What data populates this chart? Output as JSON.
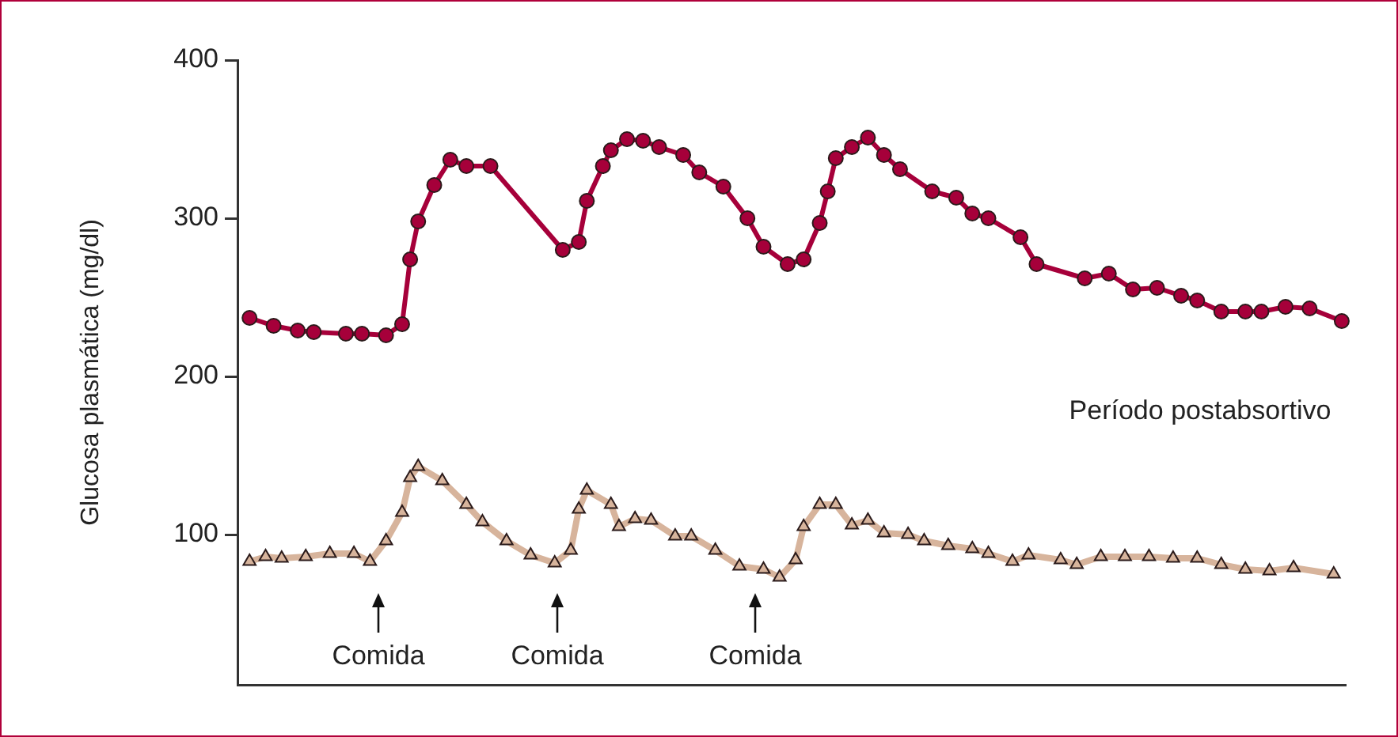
{
  "chart_data": {
    "type": "line",
    "ylabel": "Glucosa plasmática (mg/dl)",
    "categories": [
      null,
      null,
      null,
      null,
      null,
      null,
      null,
      null,
      null,
      null,
      null,
      null,
      null,
      null,
      null,
      null,
      null,
      null,
      null,
      null,
      null,
      null,
      null,
      null,
      null,
      null,
      null,
      null,
      null,
      null,
      null,
      null,
      null,
      null,
      null,
      null,
      null,
      null,
      null,
      null,
      null,
      null,
      null,
      null,
      null,
      null,
      null,
      null,
      null,
      null,
      null,
      null,
      null,
      null,
      null,
      null,
      null,
      null,
      null,
      null,
      null,
      null,
      null,
      null,
      null,
      null,
      null,
      null,
      null,
      null,
      null,
      null,
      null,
      null,
      null,
      null,
      null,
      null,
      null,
      null,
      null,
      null,
      null,
      null,
      null,
      null,
      null,
      null,
      null,
      null,
      null,
      null,
      null,
      null,
      null,
      null,
      null,
      null,
      null,
      null,
      null,
      null,
      null,
      null,
      null,
      null,
      null,
      null,
      null,
      null,
      null,
      null,
      null,
      null,
      null,
      null,
      null,
      null,
      null,
      null,
      null,
      null,
      null,
      null,
      null,
      null,
      null,
      null,
      null,
      null,
      null,
      null,
      null,
      null,
      null,
      null,
      null,
      null
    ],
    "series": [
      {
        "color": "#a6003a",
        "marker": "circle",
        "values": [
          null,
          237,
          null,
          null,
          232,
          null,
          null,
          229,
          null,
          228,
          null,
          null,
          null,
          227,
          null,
          227,
          null,
          null,
          226,
          null,
          233,
          274,
          298,
          null,
          321,
          null,
          337,
          null,
          333,
          null,
          null,
          333,
          null,
          null,
          null,
          null,
          null,
          null,
          null,
          null,
          280,
          null,
          285,
          311,
          null,
          333,
          343,
          null,
          350,
          null,
          349,
          null,
          345,
          null,
          null,
          340,
          null,
          329,
          null,
          null,
          320,
          null,
          null,
          300,
          null,
          282,
          null,
          null,
          271,
          null,
          274,
          null,
          297,
          317,
          338,
          null,
          345,
          null,
          351,
          null,
          340,
          null,
          331,
          null,
          null,
          null,
          317,
          null,
          null,
          313,
          null,
          303,
          null,
          300,
          null,
          null,
          null,
          288,
          null,
          271,
          null,
          null,
          null,
          null,
          null,
          262,
          null,
          null,
          265,
          null,
          null,
          255,
          null,
          null,
          256,
          null,
          null,
          251,
          null,
          248,
          null,
          null,
          241,
          null,
          null,
          241,
          null,
          241,
          null,
          null,
          244,
          null,
          null,
          243,
          null,
          null,
          null,
          235
        ]
      },
      {
        "color": "#d7b49c",
        "marker": "triangle",
        "values": [
          null,
          83,
          null,
          86,
          null,
          85,
          null,
          null,
          86,
          null,
          null,
          88,
          null,
          null,
          88,
          null,
          83,
          null,
          96,
          null,
          114,
          136,
          143,
          null,
          null,
          134,
          null,
          null,
          119,
          null,
          108,
          null,
          null,
          96,
          null,
          null,
          87,
          null,
          null,
          82,
          null,
          90,
          116,
          128,
          null,
          null,
          119,
          105,
          null,
          110,
          null,
          109,
          null,
          null,
          99,
          null,
          99,
          null,
          null,
          90,
          null,
          null,
          80,
          null,
          null,
          78,
          null,
          73,
          null,
          84,
          105,
          null,
          119,
          null,
          119,
          null,
          106,
          null,
          109,
          null,
          101,
          null,
          null,
          100,
          null,
          96,
          null,
          null,
          93,
          null,
          null,
          91,
          null,
          88,
          null,
          null,
          83,
          null,
          87,
          null,
          null,
          null,
          84,
          null,
          81,
          null,
          null,
          86,
          null,
          null,
          86,
          null,
          null,
          86,
          null,
          null,
          85,
          null,
          null,
          85,
          null,
          null,
          81,
          null,
          null,
          78,
          null,
          null,
          77,
          null,
          null,
          79,
          null,
          null,
          null,
          null,
          75,
          null
        ]
      }
    ],
    "ylim": [
      5,
      400
    ],
    "yticks": [
      100,
      200,
      300,
      400
    ],
    "tick_labels": "y",
    "annotations": [
      "Comida",
      "Comida",
      "Comida",
      "Período postabsortivo"
    ]
  }
}
